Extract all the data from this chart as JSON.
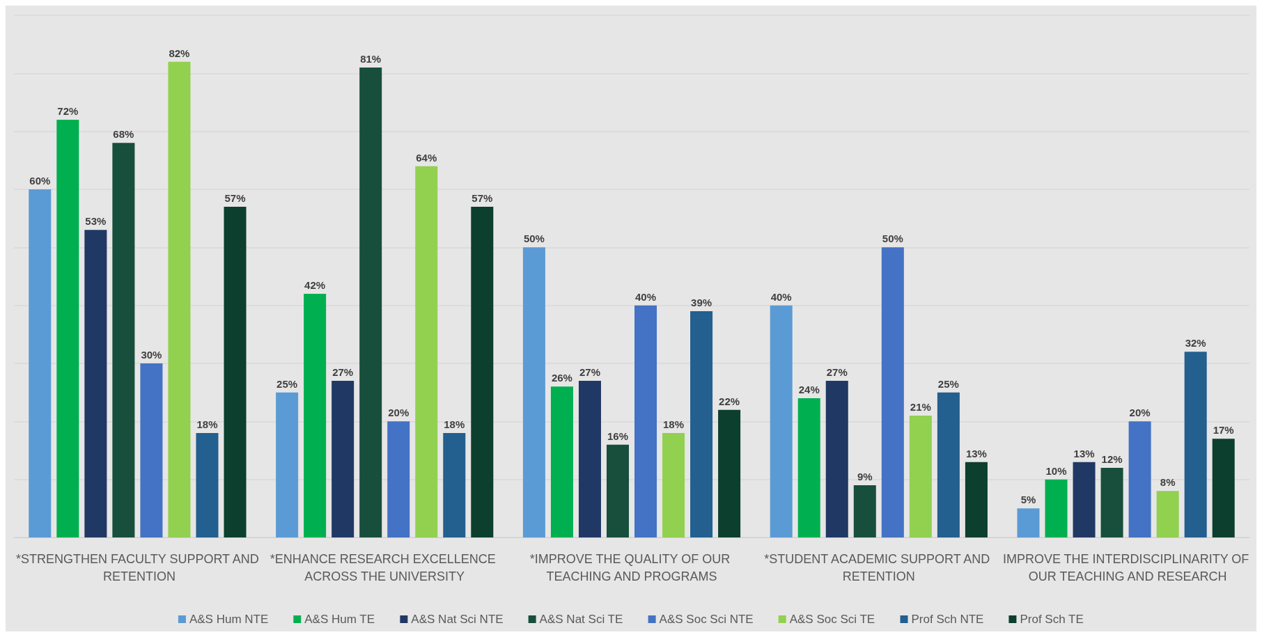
{
  "chart_data": {
    "type": "bar",
    "categories": [
      "*STRENGTHEN FACULTY SUPPORT AND RETENTION",
      "*ENHANCE RESEARCH EXCELLENCE ACROSS THE UNIVERSITY",
      "*IMPROVE THE QUALITY OF OUR TEACHING AND PROGRAMS",
      "*STUDENT ACADEMIC SUPPORT AND RETENTION",
      "IMPROVE THE INTERDISCIPLINARITY OF OUR TEACHING AND RESEARCH"
    ],
    "series": [
      {
        "name": "A&S Hum NTE",
        "color": "#5b9bd5",
        "values": [
          60,
          25,
          50,
          40,
          5
        ],
        "value_labels": [
          "60%",
          "25%",
          "50%",
          "40%",
          "5%"
        ]
      },
      {
        "name": "A&S Hum TE",
        "color": "#00b050",
        "values": [
          72,
          42,
          26,
          24,
          10
        ],
        "value_labels": [
          "72%",
          "42%",
          "26%",
          "24%",
          "10%"
        ]
      },
      {
        "name": "A&S Nat Sci NTE",
        "color": "#203864",
        "values": [
          53,
          27,
          27,
          27,
          13
        ],
        "value_labels": [
          "53%",
          "27%",
          "27%",
          "27%",
          "13%"
        ]
      },
      {
        "name": "A&S Nat Sci TE",
        "color": "#174f3c",
        "values": [
          68,
          81,
          16,
          9,
          12
        ],
        "value_labels": [
          "68%",
          "81%",
          "16%",
          "9%",
          "12%"
        ]
      },
      {
        "name": "A&S Soc Sci NTE",
        "color": "#4472c4",
        "values": [
          30,
          20,
          40,
          50,
          20
        ],
        "value_labels": [
          "30%",
          "20%",
          "40%",
          "50%",
          "20%"
        ]
      },
      {
        "name": "A&S Soc Sci TE",
        "color": "#92d050",
        "values": [
          82,
          64,
          18,
          21,
          8
        ],
        "value_labels": [
          "82%",
          "64%",
          "18%",
          "21%",
          "8%"
        ]
      },
      {
        "name": "Prof Sch NTE",
        "color": "#235f8f",
        "values": [
          18,
          18,
          39,
          25,
          32
        ],
        "value_labels": [
          "18%",
          "18%",
          "39%",
          "25%",
          "32%"
        ]
      },
      {
        "name": "Prof Sch TE",
        "color": "#0c3f2d",
        "values": [
          57,
          57,
          22,
          13,
          17
        ],
        "value_labels": [
          "57%",
          "57%",
          "22%",
          "13%",
          "17%"
        ]
      }
    ],
    "ylim": [
      0,
      90
    ],
    "yticks": [
      {
        "value": 0,
        "label": null
      },
      {
        "value": 10,
        "label": null
      },
      {
        "value": 20,
        "label": null
      },
      {
        "value": 30,
        "label": null
      },
      {
        "value": 40,
        "label": null
      },
      {
        "value": 50,
        "label": null
      },
      {
        "value": 60,
        "label": null
      },
      {
        "value": 70,
        "label": null
      },
      {
        "value": 80,
        "label": null
      },
      {
        "value": 90,
        "label": null
      }
    ],
    "tick_labels": "x",
    "grid": "y",
    "legend": "bottom"
  }
}
